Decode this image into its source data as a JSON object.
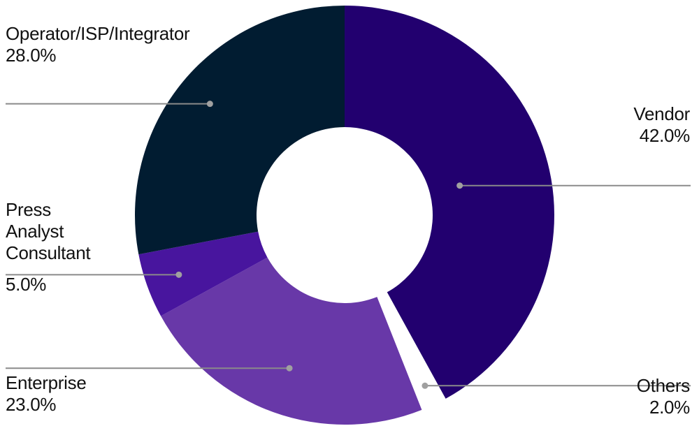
{
  "chart_data": {
    "type": "pie",
    "variant": "donut",
    "slices": [
      {
        "label_lines": [
          "Vendor"
        ],
        "value": 42.0,
        "value_label": "42.0%",
        "color": "#22006f"
      },
      {
        "label_lines": [
          "Others"
        ],
        "value": 2.0,
        "value_label": "2.0%",
        "color": "#ffffff"
      },
      {
        "label_lines": [
          "Enterprise"
        ],
        "value": 23.0,
        "value_label": "23.0%",
        "color": "#6838a8"
      },
      {
        "label_lines": [
          "Press",
          "Analyst",
          "Consultant"
        ],
        "value": 5.0,
        "value_label": "5.0%",
        "color": "#48159e"
      },
      {
        "label_lines": [
          "Operator/ISP/Integrator"
        ],
        "value": 28.0,
        "value_label": "28.0%",
        "color": "#011c31"
      }
    ],
    "start_angle_deg": 0,
    "direction": "clockwise",
    "leader_line_color": "#8a8a8a",
    "leader_dot_color": "#a0a0a0"
  }
}
